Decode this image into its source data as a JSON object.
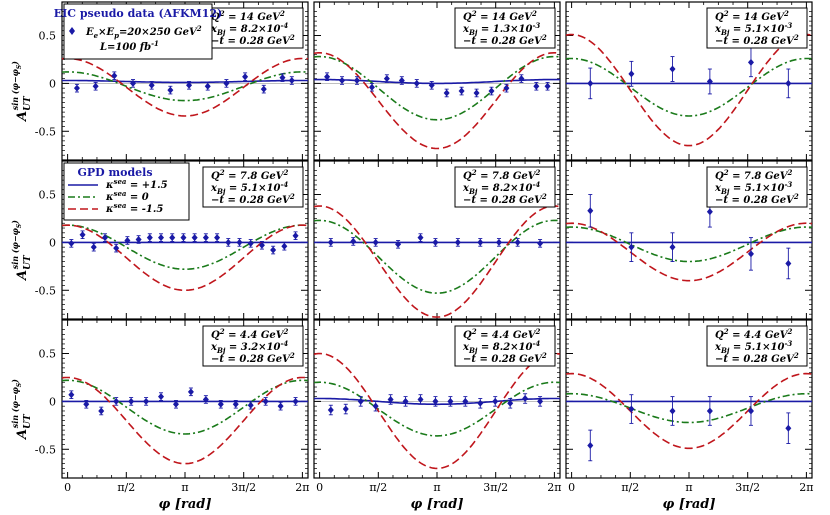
{
  "figure": {
    "xlabel_main": "φ",
    "xlabel_unit": "[rad]",
    "ylabel_main": "A",
    "ylabel_sub": "UT",
    "ylabel_sup": "sin (φ−φ",
    "ylabel_sup_sub": "S",
    "ylabel_sup_close": ")",
    "xticks": [
      "0",
      "π/2",
      "π",
      "3π/2",
      "2π"
    ],
    "yticks": [
      "0.5",
      "0",
      "-0.5"
    ],
    "legend_data": {
      "title": "EIC pseudo data (AFKM12)",
      "entry1": "E",
      "entry1_sub_e": "e",
      "entry1_mid": "×E",
      "entry1_sub_p": "p",
      "entry1_tail": "=20×250 GeV",
      "entry1_sup": "2",
      "entry2": "L=100 fb",
      "entry2_sup": "-1"
    },
    "legend_models": {
      "title": "GPD models",
      "k_label": "κ",
      "k_sup": "sea",
      "entries": [
        " = +1.5",
        " = 0",
        " = -1.5"
      ]
    },
    "colors": {
      "solid": "#1a1aa6",
      "dashdot": "#1a7a1a",
      "dashed": "#c0161c",
      "points": "#1a1aa6"
    }
  },
  "chart_data": [
    {
      "row": 0,
      "col": 0,
      "Q2": "14",
      "xB_m": "8.2",
      "xB_e": "-4",
      "t": "0.28",
      "model_params": {
        "offset": [
          0.02,
          -0.03,
          -0.04
        ],
        "amp": [
          0.01,
          0.15,
          0.3
        ],
        "phase": [
          0,
          0,
          0
        ]
      },
      "points": {
        "x": [
          0.25,
          0.75,
          1.25,
          1.75,
          2.25,
          2.75,
          3.25,
          3.75,
          4.25,
          4.75,
          5.25,
          5.75,
          6.0
        ],
        "y": [
          -0.05,
          -0.03,
          0.08,
          0.0,
          -0.02,
          -0.07,
          -0.02,
          -0.03,
          0.0,
          0.07,
          -0.06,
          0.06,
          0.03
        ],
        "err": [
          0.04,
          0.04,
          0.04,
          0.04,
          0.04,
          0.04,
          0.04,
          0.04,
          0.04,
          0.04,
          0.04,
          0.04,
          0.04
        ]
      }
    },
    {
      "row": 0,
      "col": 1,
      "Q2": "14",
      "xB_m": "1.3",
      "xB_e": "-3",
      "t": "0.28",
      "model_params": {
        "offset": [
          0.02,
          -0.05,
          -0.18
        ],
        "amp": [
          0.02,
          0.33,
          0.5
        ],
        "phase": [
          0,
          0,
          0
        ]
      },
      "points": {
        "x": [
          0.2,
          0.6,
          1.0,
          1.4,
          1.8,
          2.2,
          2.6,
          3.0,
          3.4,
          3.8,
          4.2,
          4.6,
          5.0,
          5.4,
          5.8,
          6.1
        ],
        "y": [
          0.07,
          0.03,
          0.03,
          -0.04,
          0.05,
          0.03,
          0.0,
          -0.02,
          -0.1,
          -0.08,
          -0.1,
          -0.08,
          -0.05,
          0.05,
          -0.03,
          -0.03
        ],
        "err": [
          0.04,
          0.04,
          0.04,
          0.04,
          0.04,
          0.04,
          0.04,
          0.04,
          0.04,
          0.04,
          0.04,
          0.04,
          0.04,
          0.04,
          0.04,
          0.04
        ]
      }
    },
    {
      "row": 0,
      "col": 2,
      "Q2": "14",
      "xB_m": "5.1",
      "xB_e": "-3",
      "t": "0.28",
      "model_params": {
        "offset": [
          0.0,
          -0.04,
          -0.07
        ],
        "amp": [
          0.0,
          0.3,
          0.58
        ],
        "phase": [
          0,
          0,
          0
        ]
      },
      "points": {
        "x": [
          0.5,
          1.6,
          2.7,
          3.7,
          4.8,
          5.8
        ],
        "y": [
          0.0,
          0.1,
          0.15,
          0.02,
          0.22,
          0.0
        ],
        "err": [
          0.16,
          0.13,
          0.13,
          0.13,
          0.15,
          0.15
        ]
      }
    },
    {
      "row": 1,
      "col": 0,
      "Q2": "7.8",
      "xB_m": "5.1",
      "xB_e": "-4",
      "t": "0.28",
      "model_params": {
        "offset": [
          0.0,
          -0.05,
          -0.16
        ],
        "amp": [
          0.0,
          0.23,
          0.34
        ],
        "phase": [
          0,
          0,
          0
        ]
      },
      "points": {
        "x": [
          0.1,
          0.4,
          0.7,
          1.0,
          1.3,
          1.6,
          1.9,
          2.2,
          2.5,
          2.8,
          3.1,
          3.4,
          3.7,
          4.0,
          4.3,
          4.6,
          4.9,
          5.2,
          5.5,
          5.8,
          6.1
        ],
        "y": [
          -0.01,
          0.08,
          -0.05,
          0.05,
          -0.06,
          0.02,
          0.03,
          0.05,
          0.05,
          0.05,
          0.05,
          0.05,
          0.05,
          0.05,
          0.0,
          0.0,
          -0.01,
          -0.03,
          -0.08,
          -0.04,
          0.07
        ],
        "err": [
          0.04,
          0.04,
          0.04,
          0.04,
          0.04,
          0.04,
          0.04,
          0.04,
          0.04,
          0.04,
          0.04,
          0.04,
          0.04,
          0.04,
          0.04,
          0.04,
          0.04,
          0.04,
          0.04,
          0.04,
          0.04
        ]
      }
    },
    {
      "row": 1,
      "col": 1,
      "Q2": "7.8",
      "xB_m": "8.2",
      "xB_e": "-4",
      "t": "0.28",
      "model_params": {
        "offset": [
          0.0,
          -0.15,
          -0.2
        ],
        "amp": [
          0.0,
          0.38,
          0.58
        ],
        "phase": [
          0,
          0,
          0
        ]
      },
      "points": {
        "x": [
          0.3,
          0.9,
          1.5,
          2.1,
          2.7,
          3.1,
          3.7,
          4.3,
          4.8,
          5.3,
          5.9
        ],
        "y": [
          0.0,
          0.01,
          0.0,
          -0.02,
          0.05,
          0.0,
          0.0,
          0.0,
          0.0,
          0.0,
          -0.01
        ],
        "err": [
          0.04,
          0.04,
          0.04,
          0.04,
          0.04,
          0.04,
          0.04,
          0.04,
          0.04,
          0.04,
          0.04
        ]
      }
    },
    {
      "row": 1,
      "col": 2,
      "Q2": "7.8",
      "xB_m": "5.1",
      "xB_e": "-3",
      "t": "0.28",
      "model_params": {
        "offset": [
          0.0,
          -0.02,
          -0.1
        ],
        "amp": [
          0.0,
          0.18,
          0.3
        ],
        "phase": [
          0,
          0,
          0
        ]
      },
      "points": {
        "x": [
          0.5,
          1.6,
          2.7,
          3.7,
          4.8,
          5.8
        ],
        "y": [
          0.33,
          -0.05,
          -0.05,
          0.32,
          -0.12,
          -0.22
        ],
        "err": [
          0.17,
          0.15,
          0.15,
          0.16,
          0.17,
          0.16
        ]
      }
    },
    {
      "row": 2,
      "col": 0,
      "Q2": "4.4",
      "xB_m": "3.2",
      "xB_e": "-4",
      "t": "0.28",
      "model_params": {
        "offset": [
          0.0,
          -0.06,
          -0.2
        ],
        "amp": [
          0.0,
          0.28,
          0.45
        ],
        "phase": [
          0,
          0,
          0
        ]
      },
      "points": {
        "x": [
          0.1,
          0.5,
          0.9,
          1.3,
          1.7,
          2.1,
          2.5,
          2.9,
          3.3,
          3.7,
          4.1,
          4.5,
          4.9,
          5.3,
          5.7,
          6.1
        ],
        "y": [
          0.07,
          -0.03,
          -0.1,
          0.0,
          0.0,
          0.0,
          0.05,
          -0.03,
          0.1,
          0.02,
          -0.03,
          -0.03,
          -0.04,
          0.0,
          -0.05,
          0.0
        ],
        "err": [
          0.04,
          0.04,
          0.04,
          0.04,
          0.04,
          0.04,
          0.04,
          0.04,
          0.04,
          0.04,
          0.04,
          0.04,
          0.04,
          0.04,
          0.04,
          0.04
        ]
      }
    },
    {
      "row": 2,
      "col": 1,
      "Q2": "4.4",
      "xB_m": "8.2",
      "xB_e": "-4",
      "t": "0.28",
      "model_params": {
        "offset": [
          0.0,
          -0.08,
          -0.1
        ],
        "amp": [
          0.03,
          0.28,
          0.6
        ],
        "phase": [
          0,
          0,
          0
        ]
      },
      "points": {
        "x": [
          0.3,
          0.7,
          1.1,
          1.5,
          1.9,
          2.3,
          2.7,
          3.1,
          3.5,
          3.9,
          4.3,
          4.7,
          5.1,
          5.5,
          5.9
        ],
        "y": [
          -0.09,
          -0.08,
          0.0,
          -0.05,
          0.02,
          0.0,
          0.02,
          0.0,
          0.0,
          0.0,
          -0.02,
          0.0,
          -0.02,
          0.03,
          0.0
        ],
        "err": [
          0.05,
          0.05,
          0.05,
          0.05,
          0.05,
          0.05,
          0.05,
          0.05,
          0.05,
          0.05,
          0.05,
          0.05,
          0.05,
          0.05,
          0.05
        ]
      }
    },
    {
      "row": 2,
      "col": 2,
      "Q2": "4.4",
      "xB_m": "5.1",
      "xB_e": "-3",
      "t": "0.28",
      "model_params": {
        "offset": [
          0.0,
          -0.07,
          -0.1
        ],
        "amp": [
          0.0,
          0.15,
          0.39
        ],
        "phase": [
          0,
          0,
          0
        ]
      },
      "points": {
        "x": [
          0.5,
          1.6,
          2.7,
          3.7,
          4.8,
          5.8
        ],
        "y": [
          -0.46,
          -0.08,
          -0.1,
          -0.1,
          -0.1,
          -0.28
        ],
        "err": [
          0.16,
          0.15,
          0.15,
          0.15,
          0.15,
          0.16
        ]
      }
    }
  ]
}
